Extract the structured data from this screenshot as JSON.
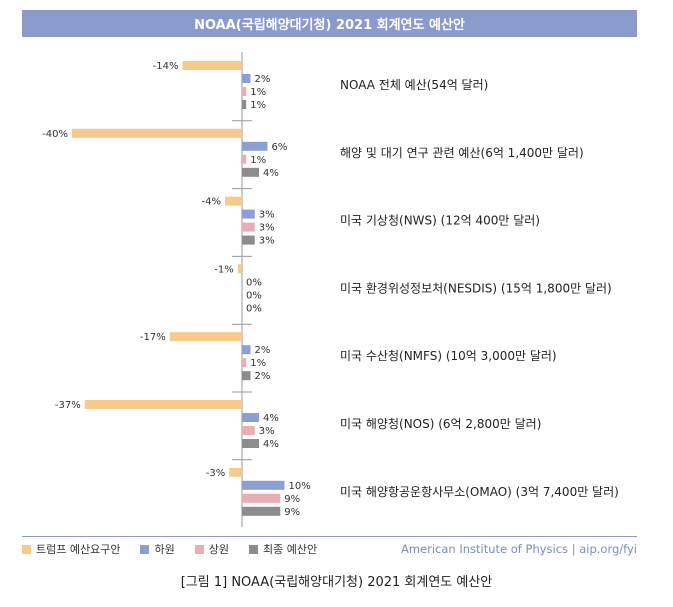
{
  "chart_data": {
    "type": "bar",
    "orientation": "horizontal",
    "title": "NOAA(국립해양대기청) 2021 회계연도 예산안",
    "categories": [
      "NOAA 전체 예산(54억 달러)",
      "해양 및 대기 연구 관련 예산(6억 1,400만 달러)",
      "미국 기상청(NWS) (12억 400만 달러)",
      "미국 환경위성정보처(NESDIS) (15억 1,800만 달러)",
      "미국 수산청(NMFS) (10억 3,000만 달러)",
      "미국 해양청(NOS) (6억 2,800만 달러)",
      "미국 해양항공운항사무소(OMAO) (3억 7,400만 달러)"
    ],
    "series": [
      {
        "name": "트럼프 예산요구안",
        "color": "#f7c98a",
        "values": [
          -14,
          -40,
          -4,
          -1,
          -17,
          -37,
          -3
        ]
      },
      {
        "name": "하원",
        "color": "#8b9fd3",
        "values": [
          2,
          6,
          3,
          0,
          2,
          4,
          10
        ]
      },
      {
        "name": "상원",
        "color": "#e9aeb4",
        "values": [
          1,
          1,
          3,
          0,
          1,
          3,
          9
        ]
      },
      {
        "name": "최종 예산안",
        "color": "#8c8c8c",
        "values": [
          1,
          4,
          3,
          0,
          2,
          4,
          9
        ]
      }
    ],
    "value_suffix": "%",
    "xlim": [
      -40,
      10
    ],
    "grid": false,
    "legend": "bottom-left"
  },
  "source": "American Institute of Physics | aip.org/fyi",
  "caption": "[그림 1] NOAA(국립해양대기청) 2021 회계연도 예산안"
}
